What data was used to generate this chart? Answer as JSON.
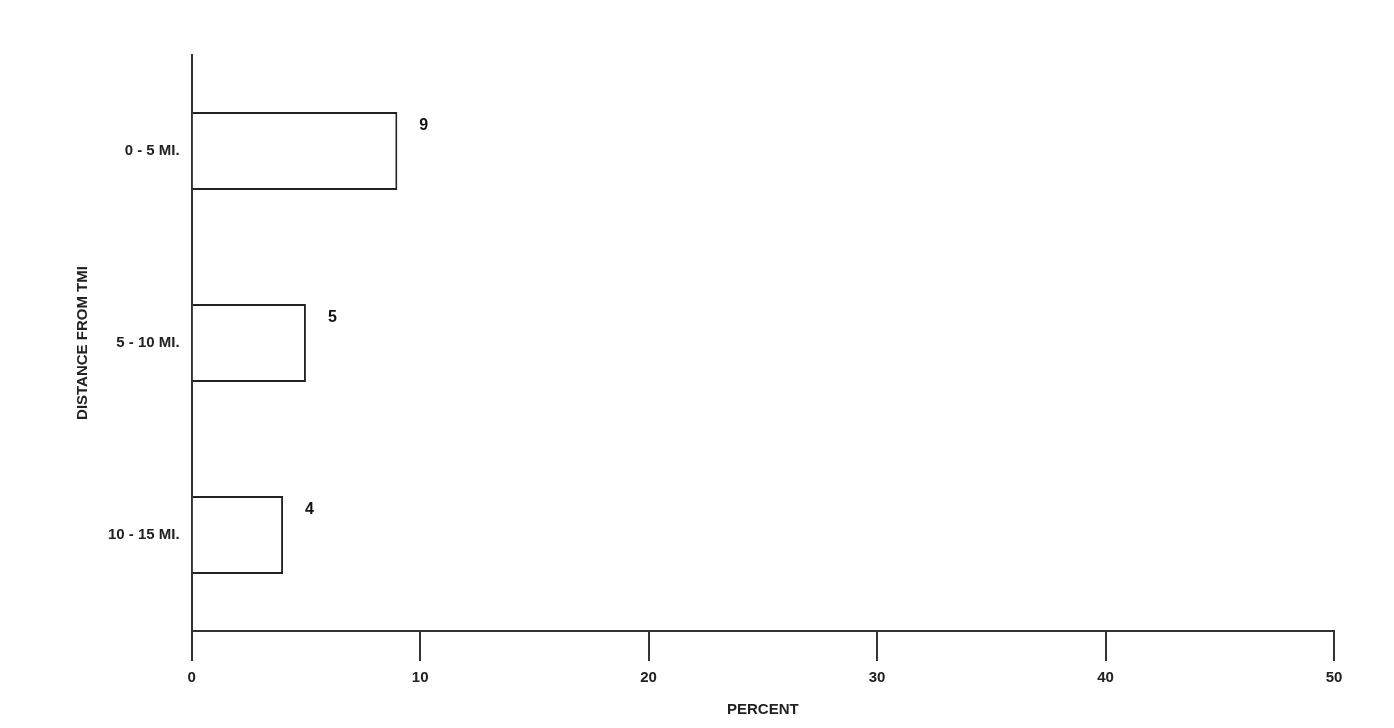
{
  "chart_data": {
    "type": "bar",
    "orientation": "horizontal",
    "xlabel": "PERCENT",
    "ylabel": "DISTANCE FROM TMI",
    "categories": [
      "0 - 5 MI.",
      "5 - 10 MI.",
      "10 - 15 MI."
    ],
    "values": [
      9,
      5,
      4
    ],
    "color": "#ffffff",
    "xlim": [
      0,
      50
    ],
    "xticks": [
      0,
      10,
      20,
      30,
      40,
      50
    ],
    "grid": false,
    "legend": false,
    "data_labels": true
  }
}
